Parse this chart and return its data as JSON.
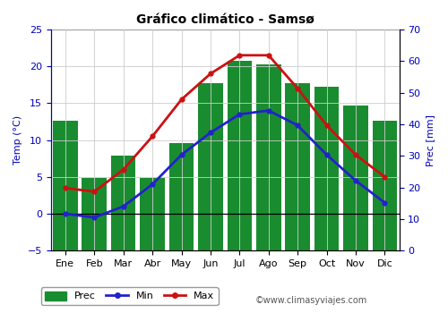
{
  "title": "Gráfico climático - Samsø",
  "months": [
    "Ene",
    "Feb",
    "Mar",
    "Abr",
    "May",
    "Jun",
    "Jul",
    "Ago",
    "Sep",
    "Oct",
    "Nov",
    "Dic"
  ],
  "prec": [
    41,
    23,
    30,
    23,
    34,
    53,
    60,
    59,
    53,
    52,
    46,
    41
  ],
  "temp_min": [
    0.0,
    -0.5,
    1.0,
    4.0,
    8.0,
    11.0,
    13.5,
    14.0,
    12.0,
    8.0,
    4.5,
    1.5
  ],
  "temp_max": [
    3.5,
    3.0,
    6.0,
    10.5,
    15.5,
    19.0,
    21.5,
    21.5,
    17.0,
    12.0,
    8.0,
    5.0
  ],
  "bar_color": "#1a8c30",
  "min_color": "#2222cc",
  "max_color": "#cc1111",
  "ylabel_left": "Temp (°C)",
  "ylabel_right": "Prec [mm]",
  "temp_ylim": [
    -5,
    25
  ],
  "prec_ylim": [
    0,
    70
  ],
  "temp_yticks": [
    -5,
    0,
    5,
    10,
    15,
    20,
    25
  ],
  "prec_yticks": [
    0,
    10,
    20,
    30,
    40,
    50,
    60,
    70
  ],
  "watermark": "©www.climasyviajes.com",
  "legend_labels": [
    "Prec",
    "Min",
    "Max"
  ],
  "background_color": "#ffffff",
  "grid_color": "#cccccc"
}
